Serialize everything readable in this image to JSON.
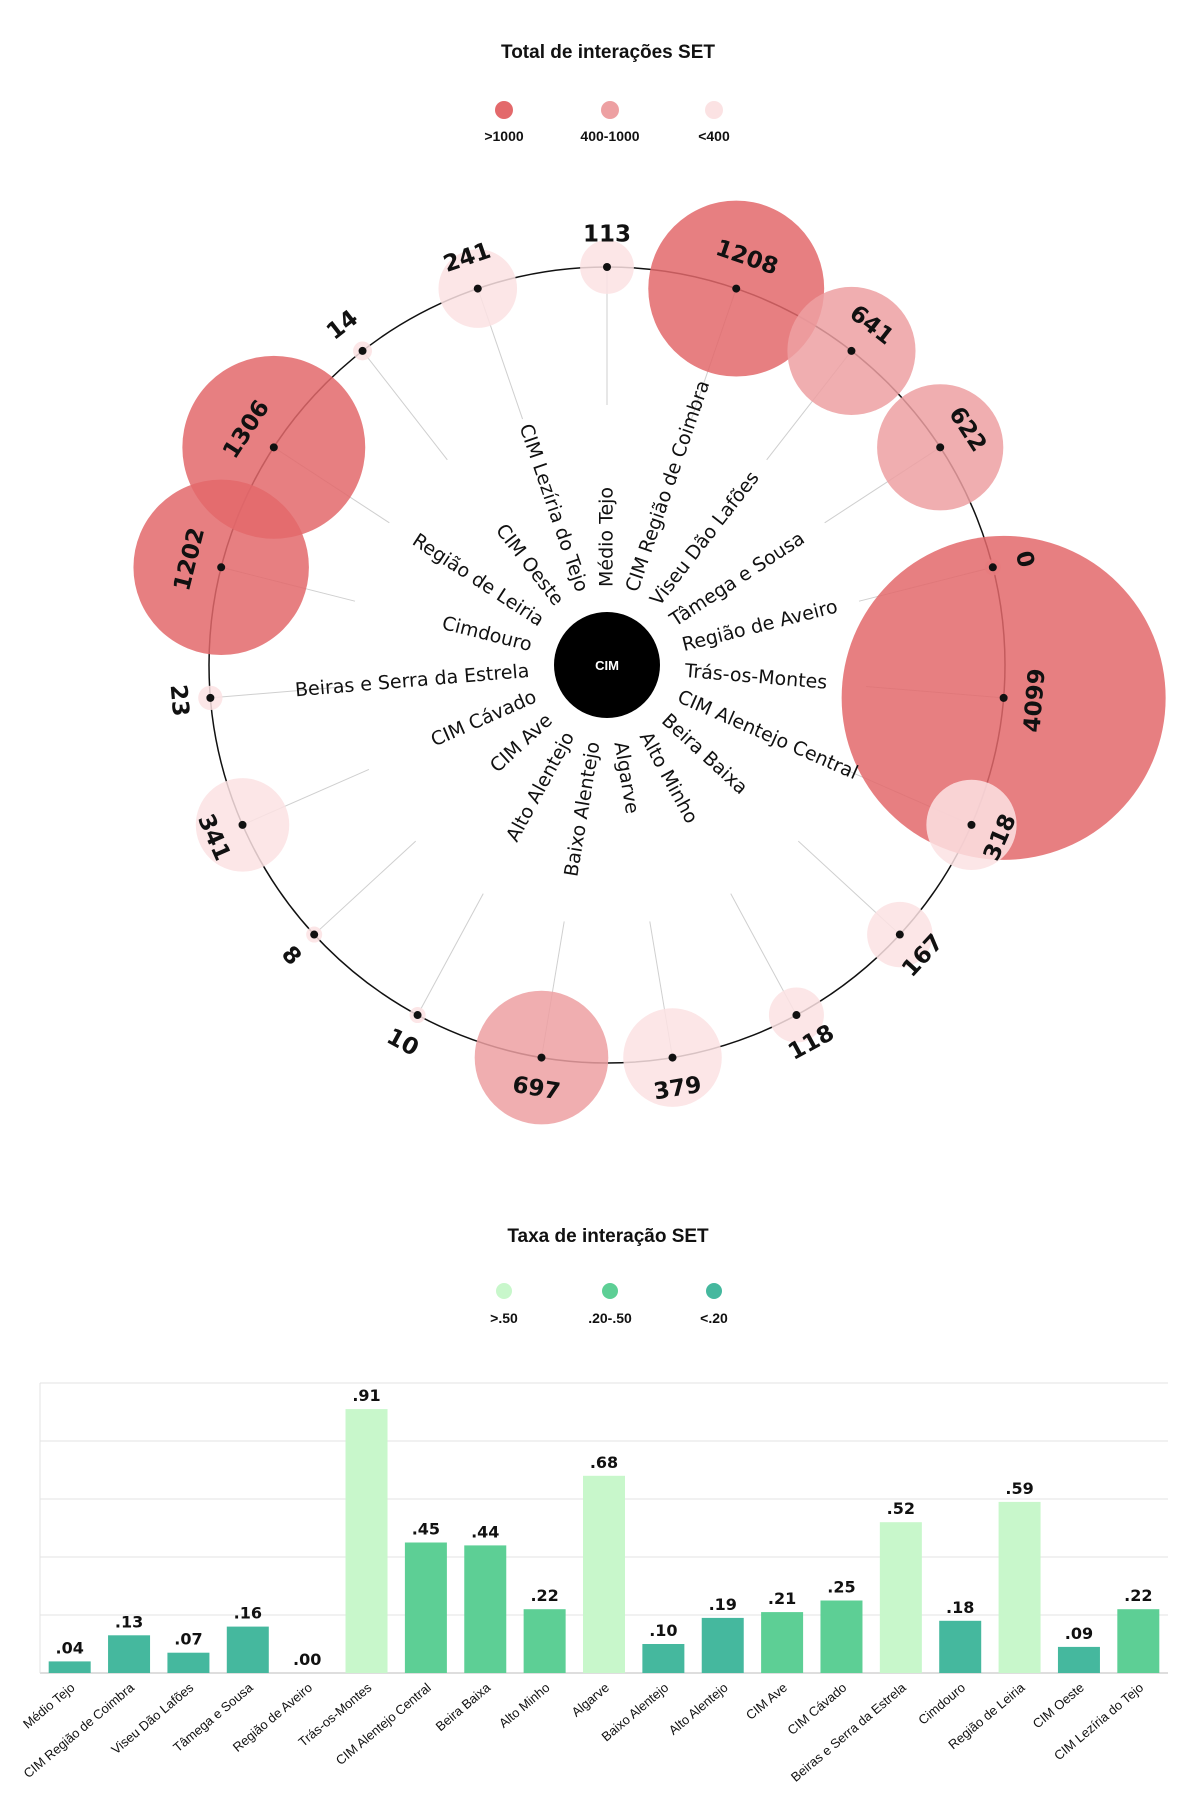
{
  "chart_data": [
    {
      "type": "bubble-radial",
      "title": "Total de interações SET",
      "center_label": "CIM",
      "legend": [
        {
          "label": ">1000",
          "color": "#e3696b"
        },
        {
          "label": "400-1000",
          "color": "#eda0a2"
        },
        {
          "label": "<400",
          "color": "#fbe2e3"
        }
      ],
      "categories": [
        "Médio Tejo",
        "CIM Região de Coimbra",
        "Viseu Dão Lafões",
        "Tâmega e Sousa",
        "Região de Aveiro",
        "Trás-os-Montes",
        "CIM Alentejo Central",
        "Beira Baixa",
        "Alto Minho",
        "Algarve",
        "Baixo Alentejo",
        "Alto Alentejo",
        "CIM Ave",
        "CIM Cávado",
        "Beiras e Serra da Estrela",
        "Cimdouro",
        "Região de Leiria",
        "CIM Oeste",
        "CIM Lezíria do Tejo"
      ],
      "values": [
        113,
        1208,
        641,
        622,
        0,
        4099,
        318,
        167,
        118,
        379,
        697,
        10,
        8,
        341,
        23,
        1202,
        1306,
        14,
        241
      ]
    },
    {
      "type": "bar",
      "title": "Taxa de interação SET",
      "legend": [
        {
          "label": ">.50",
          "color": "#c8f7cb"
        },
        {
          "label": ".20-.50",
          "color": "#5dcf95"
        },
        {
          "label": "<.20",
          "color": "#45b89e"
        }
      ],
      "categories": [
        "Médio Tejo",
        "CIM Região de Coimbra",
        "Viseu Dão Lafões",
        "Tâmega e Sousa",
        "Região de Aveiro",
        "Trás-os-Montes",
        "CIM Alentejo Central",
        "Beira Baixa",
        "Alto Minho",
        "Algarve",
        "Baixo Alentejo",
        "Alto Alentejo",
        "CIM Ave",
        "CIM Cávado",
        "Beiras e Serra da Estrela",
        "Cimdouro",
        "Região de Leiria",
        "CIM Oeste",
        "CIM Lezíria do Tejo"
      ],
      "values": [
        0.04,
        0.13,
        0.07,
        0.16,
        0.0,
        0.91,
        0.45,
        0.44,
        0.22,
        0.68,
        0.1,
        0.19,
        0.21,
        0.25,
        0.52,
        0.18,
        0.59,
        0.09,
        0.22
      ],
      "value_labels": [
        ".04",
        ".13",
        ".07",
        ".16",
        ".00",
        ".91",
        ".45",
        ".44",
        ".22",
        ".68",
        ".10",
        ".19",
        ".21",
        ".25",
        ".52",
        ".18",
        ".59",
        ".09",
        ".22"
      ],
      "ylim": [
        0,
        1.0
      ],
      "grid": true
    }
  ]
}
